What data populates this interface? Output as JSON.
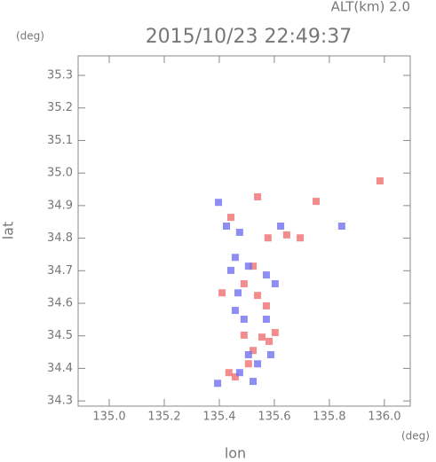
{
  "chart_data": {
    "type": "scatter",
    "annotation": "ALT(km)  2.0",
    "title": "2015/10/23 22:49:37",
    "y_unit": "(deg)",
    "x_unit": "(deg)",
    "x_label": "lon",
    "y_label": "lat",
    "xlim": [
      134.887,
      136.094
    ],
    "ylim": [
      34.284,
      35.36
    ],
    "xticks": [
      {
        "value": 135.0,
        "label": "135.0"
      },
      135.2,
      135.4,
      135.6,
      135.8,
      {
        "value": 136.0,
        "label": "136.0"
      }
    ],
    "yticks": [
      34.3,
      34.4,
      34.5,
      34.6,
      34.7,
      34.8,
      34.9,
      {
        "value": 35.0,
        "label": "35.0"
      },
      35.1,
      35.2,
      35.3
    ],
    "series": [
      {
        "color": "#f07070",
        "x": [
          135.539,
          135.752,
          135.694,
          135.577,
          135.555,
          135.581,
          135.523,
          135.458,
          135.49,
          135.539,
          135.49,
          135.603,
          135.506,
          135.435,
          135.571,
          135.442,
          135.645,
          135.41,
          135.523,
          135.984
        ],
        "values": [
          34.927,
          34.913,
          34.801,
          34.801,
          34.496,
          34.483,
          34.455,
          34.374,
          34.502,
          34.624,
          34.66,
          34.51,
          34.414,
          34.387,
          34.592,
          34.864,
          34.81,
          34.632,
          34.714,
          34.976
        ]
      },
      {
        "color": "#7070f0",
        "x": [
          135.397,
          135.426,
          135.474,
          135.623,
          135.506,
          135.468,
          135.458,
          135.571,
          135.49,
          135.506,
          135.539,
          135.587,
          135.394,
          135.474,
          135.571,
          135.442,
          135.845,
          135.458,
          135.603,
          135.523
        ],
        "values": [
          34.91,
          34.837,
          34.818,
          34.837,
          34.714,
          34.632,
          34.578,
          34.687,
          34.551,
          34.442,
          34.414,
          34.442,
          34.354,
          34.387,
          34.551,
          34.701,
          34.837,
          34.741,
          34.66,
          34.36
        ]
      }
    ]
  }
}
